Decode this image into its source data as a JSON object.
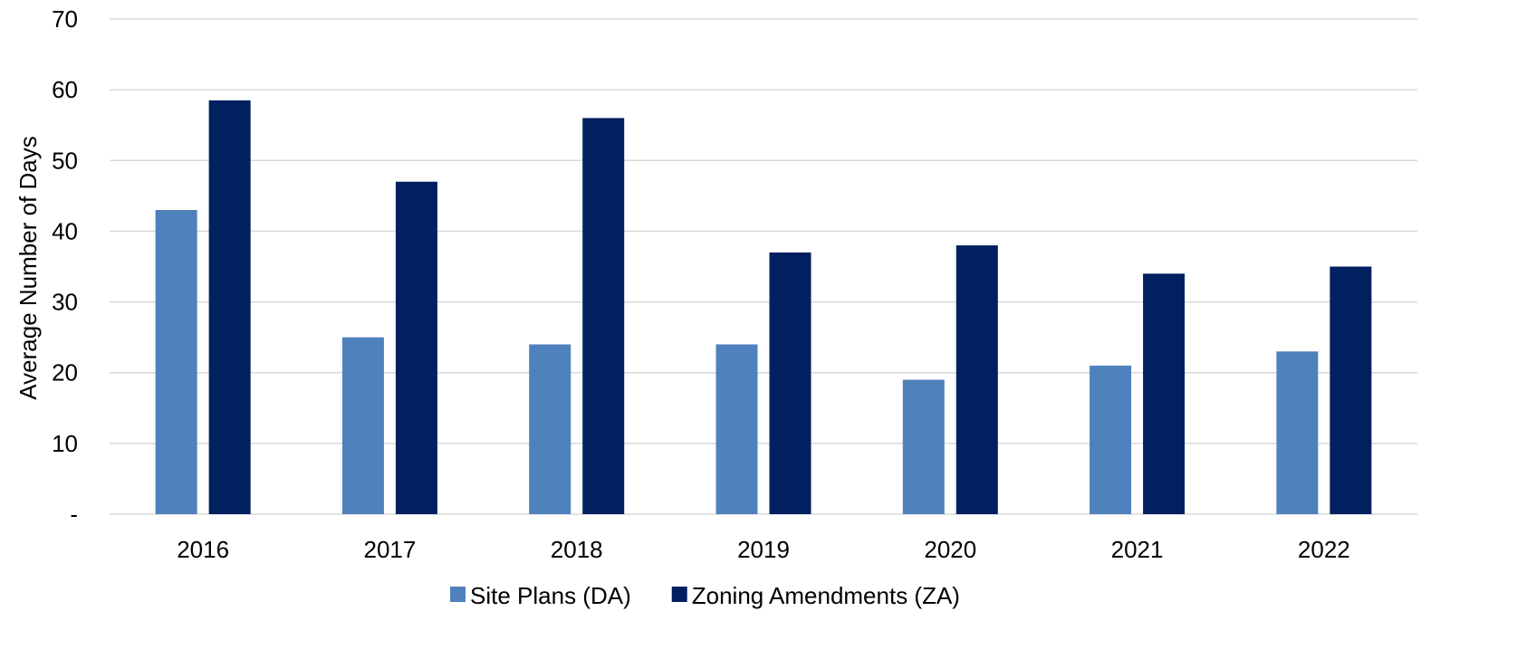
{
  "chart_data": {
    "type": "bar",
    "categories": [
      "2016",
      "2017",
      "2018",
      "2019",
      "2020",
      "2021",
      "2022"
    ],
    "series": [
      {
        "name": "Site Plans (DA)",
        "color": "#4F81BD",
        "values": [
          43,
          25,
          24,
          24,
          19,
          21,
          23
        ]
      },
      {
        "name": "Zoning Amendments (ZA)",
        "color": "#002060",
        "values": [
          58.5,
          47,
          56,
          37,
          38,
          34,
          35
        ]
      }
    ],
    "ylabel": "Average Number of Days",
    "ylim": [
      0,
      70
    ],
    "yticks": [
      0,
      10,
      20,
      30,
      40,
      50,
      60,
      70
    ],
    "ytick_labels": [
      "-",
      "10",
      "20",
      "30",
      "40",
      "50",
      "60",
      "70"
    ],
    "grid": true,
    "gridline_color": "#D9D9D9",
    "legend_position": "bottom-center"
  }
}
